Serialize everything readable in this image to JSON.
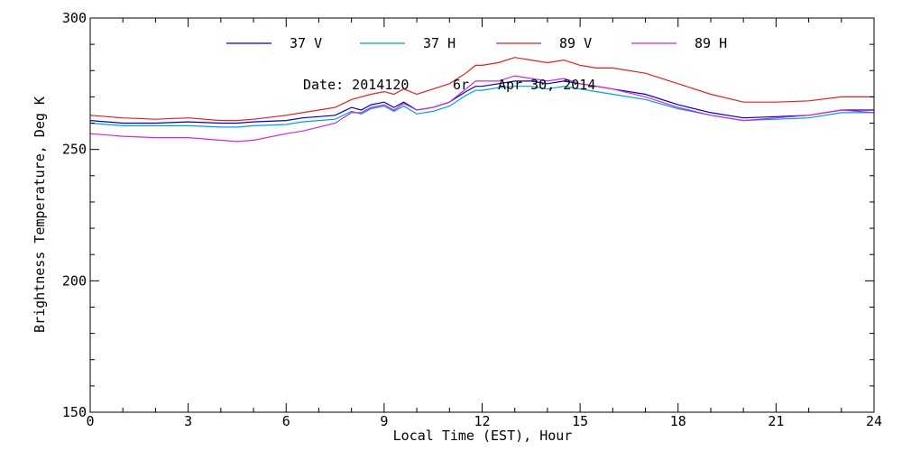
{
  "chart_data": {
    "type": "line",
    "title": "",
    "xlabel": "Local Time (EST), Hour",
    "ylabel": "Brightness Temperature, Deg K",
    "xlim": [
      0,
      24
    ],
    "ylim": [
      150,
      300
    ],
    "x_ticks": [
      0,
      3,
      6,
      9,
      12,
      15,
      18,
      21,
      24
    ],
    "y_ticks": [
      150,
      200,
      250,
      300
    ],
    "grid": false,
    "legend_position": "top",
    "annotation_date": "Date: 2014120",
    "annotation_day": "6r",
    "annotation_full_date": "Apr 30, 2014",
    "series": [
      {
        "name": "37 V",
        "color": "#0000c8",
        "x": [
          0,
          1,
          2,
          3,
          4,
          4.5,
          5,
          6,
          6.5,
          7,
          7.5,
          8,
          8.3,
          8.6,
          9,
          9.3,
          9.6,
          10,
          10.5,
          11,
          11.5,
          11.8,
          12,
          12.5,
          13,
          13.5,
          14,
          14.5,
          15,
          15.5,
          16,
          17,
          18,
          19,
          20,
          21,
          22,
          23,
          24
        ],
        "values": [
          261,
          260,
          260,
          260.5,
          260,
          260,
          260.5,
          261,
          262,
          262.5,
          263,
          266,
          265,
          267,
          268,
          266,
          268,
          265,
          266,
          268,
          272,
          274,
          274,
          275,
          276,
          276,
          275,
          276,
          275,
          274,
          273,
          271,
          267,
          264,
          262,
          262.5,
          263,
          265,
          265
        ]
      },
      {
        "name": "37 H",
        "color": "#00a0d2",
        "x": [
          0,
          1,
          2,
          3,
          4,
          4.5,
          5,
          6,
          6.5,
          7,
          7.5,
          8,
          8.3,
          8.6,
          9,
          9.3,
          9.6,
          10,
          10.5,
          11,
          11.5,
          11.8,
          12,
          12.5,
          13,
          13.5,
          14,
          14.5,
          15,
          15.5,
          16,
          17,
          18,
          19,
          20,
          21,
          22,
          23,
          24
        ],
        "values": [
          260,
          259,
          259,
          259,
          258.5,
          258.5,
          259,
          259.5,
          260.5,
          261,
          261.5,
          264.5,
          263.5,
          265.5,
          266.5,
          264.5,
          266.5,
          263.5,
          264.5,
          266.5,
          270.5,
          272.5,
          272.5,
          273.5,
          274,
          274,
          273,
          274,
          273,
          272,
          271,
          269,
          265.5,
          263,
          261,
          261.5,
          262,
          264,
          264
        ]
      },
      {
        "name": "89 V",
        "color": "#e61e1e",
        "x": [
          0,
          1,
          2,
          3,
          4,
          4.5,
          5,
          6,
          6.5,
          7,
          7.5,
          8,
          8.3,
          8.6,
          9,
          9.3,
          9.6,
          10,
          10.5,
          11,
          11.5,
          11.8,
          12,
          12.5,
          13,
          13.5,
          14,
          14.5,
          15,
          15.5,
          16,
          17,
          18,
          19,
          20,
          21,
          22,
          23,
          24
        ],
        "values": [
          263,
          262,
          261.5,
          262,
          261,
          261,
          261.5,
          263,
          264,
          265,
          266,
          269,
          270,
          271,
          272,
          271,
          273,
          271,
          273,
          275,
          279,
          282,
          282,
          283,
          285,
          284,
          283,
          284,
          282,
          281,
          281,
          279,
          275,
          271,
          268,
          268,
          268.5,
          270,
          270
        ]
      },
      {
        "name": "89 H",
        "color": "#d228d2",
        "x": [
          0,
          1,
          2,
          3,
          4,
          4.5,
          5,
          6,
          6.5,
          7,
          7.5,
          8,
          8.3,
          8.6,
          9,
          9.3,
          9.6,
          10,
          10.5,
          11,
          11.5,
          11.8,
          12,
          12.5,
          13,
          13.5,
          14,
          14.5,
          15,
          15.5,
          16,
          17,
          18,
          19,
          20,
          21,
          22,
          23,
          24
        ],
        "values": [
          256,
          255,
          254.5,
          254.5,
          253.5,
          253,
          253.5,
          256,
          257,
          258.5,
          260,
          264,
          264,
          266,
          267,
          265,
          267.5,
          265,
          266,
          268,
          273,
          276,
          276,
          276,
          278,
          277,
          276,
          277,
          275,
          274,
          273,
          270,
          266,
          263,
          261,
          262,
          263,
          265,
          264
        ]
      }
    ]
  }
}
